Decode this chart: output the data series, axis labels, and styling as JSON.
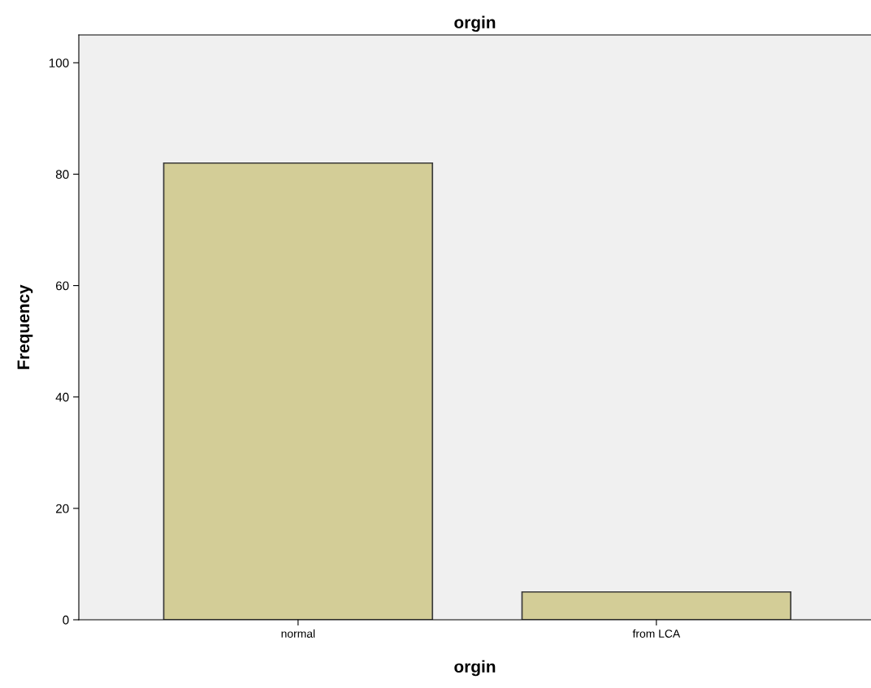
{
  "chart_data": {
    "type": "bar",
    "title": "orgin",
    "xlabel": "orgin",
    "ylabel": "Frequency",
    "categories": [
      "normal",
      "from LCA"
    ],
    "values": [
      82,
      5
    ],
    "color": "#d3cd97",
    "ylim": [
      0,
      105
    ],
    "yticks": [
      0,
      20,
      40,
      60,
      80,
      100
    ],
    "grid": false,
    "legend": false
  }
}
